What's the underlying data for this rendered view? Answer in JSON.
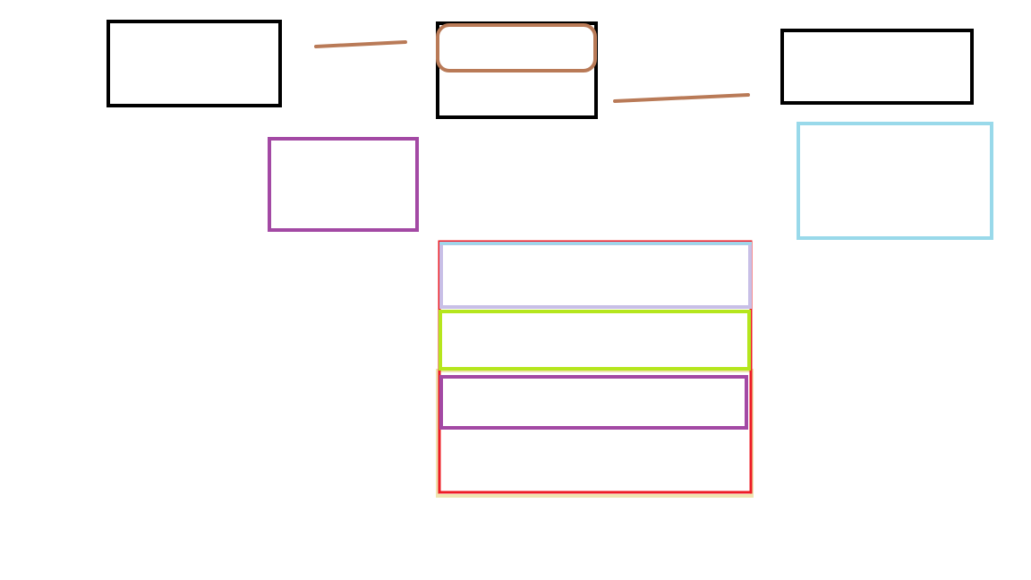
{
  "diagram": {
    "background": "#ffffff",
    "colors": {
      "black": "#000000",
      "brown": "#b97a57",
      "purple": "#a349a4",
      "light_blue": "#99d9ea",
      "lavender": "#c8bfe7",
      "lime": "#b5e61d",
      "cream": "#efe4b0",
      "red": "#ed1c24"
    },
    "shapes": [
      {
        "name": "left-box",
        "kind": "rectangle",
        "color": "black"
      },
      {
        "name": "center-box",
        "kind": "rectangle",
        "color": "black"
      },
      {
        "name": "center-rounded-box",
        "kind": "rounded-rectangle",
        "color": "brown"
      },
      {
        "name": "right-box",
        "kind": "rectangle",
        "color": "black"
      },
      {
        "name": "left-connector-line",
        "kind": "line",
        "color": "brown"
      },
      {
        "name": "right-connector-line",
        "kind": "line",
        "color": "brown"
      },
      {
        "name": "purple-box-left",
        "kind": "rectangle",
        "color": "purple"
      },
      {
        "name": "light-blue-box-right",
        "kind": "rectangle",
        "color": "light_blue"
      },
      {
        "name": "stack-outer-box",
        "kind": "rectangle",
        "color": "red"
      },
      {
        "name": "stack-row-1",
        "kind": "rectangle",
        "color": "lavender"
      },
      {
        "name": "stack-row-2",
        "kind": "rectangle",
        "color": "lime"
      },
      {
        "name": "stack-row-3",
        "kind": "rectangle",
        "color": "purple"
      },
      {
        "name": "stack-bottom-box",
        "kind": "rectangle",
        "color": "cream"
      }
    ]
  }
}
